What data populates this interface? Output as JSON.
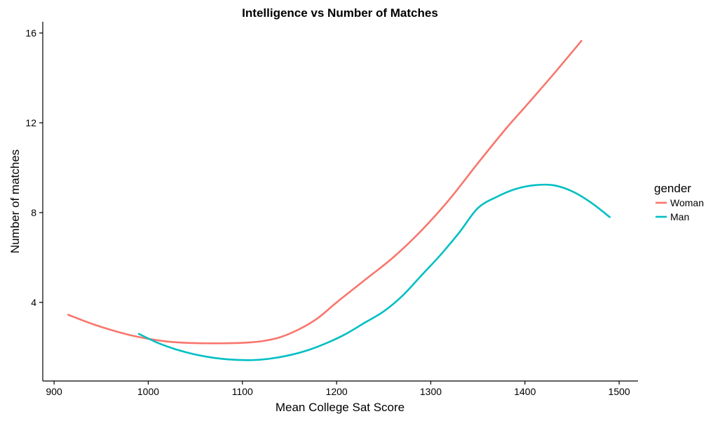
{
  "chart_data": {
    "type": "line",
    "title": "Intelligence vs Number of Matches",
    "xlabel": "Mean College Sat Score",
    "ylabel": "Number of matches",
    "xlim": [
      888,
      1520
    ],
    "ylim": [
      0.5,
      16.5
    ],
    "xticks": [
      900,
      1000,
      1100,
      1200,
      1300,
      1400,
      1500
    ],
    "yticks": [
      4,
      8,
      12,
      16
    ],
    "grid": false,
    "legend": {
      "title": "gender",
      "placement": "right"
    },
    "series": [
      {
        "name": "Woman",
        "color": "#F8766D",
        "points": [
          [
            915,
            3.45
          ],
          [
            940,
            3.05
          ],
          [
            960,
            2.78
          ],
          [
            980,
            2.55
          ],
          [
            1000,
            2.38
          ],
          [
            1020,
            2.26
          ],
          [
            1040,
            2.2
          ],
          [
            1060,
            2.18
          ],
          [
            1080,
            2.18
          ],
          [
            1100,
            2.2
          ],
          [
            1120,
            2.27
          ],
          [
            1140,
            2.45
          ],
          [
            1160,
            2.8
          ],
          [
            1180,
            3.3
          ],
          [
            1200,
            4.0
          ],
          [
            1230,
            5.0
          ],
          [
            1260,
            6.0
          ],
          [
            1290,
            7.2
          ],
          [
            1320,
            8.6
          ],
          [
            1350,
            10.2
          ],
          [
            1380,
            11.75
          ],
          [
            1400,
            12.7
          ],
          [
            1430,
            14.15
          ],
          [
            1460,
            15.65
          ]
        ]
      },
      {
        "name": "Man",
        "color": "#00BFC4",
        "points": [
          [
            990,
            2.6
          ],
          [
            1010,
            2.2
          ],
          [
            1030,
            1.9
          ],
          [
            1050,
            1.68
          ],
          [
            1070,
            1.53
          ],
          [
            1090,
            1.45
          ],
          [
            1110,
            1.43
          ],
          [
            1130,
            1.5
          ],
          [
            1150,
            1.65
          ],
          [
            1170,
            1.88
          ],
          [
            1190,
            2.2
          ],
          [
            1210,
            2.6
          ],
          [
            1230,
            3.1
          ],
          [
            1250,
            3.6
          ],
          [
            1270,
            4.3
          ],
          [
            1290,
            5.2
          ],
          [
            1310,
            6.1
          ],
          [
            1330,
            7.1
          ],
          [
            1350,
            8.2
          ],
          [
            1370,
            8.7
          ],
          [
            1390,
            9.05
          ],
          [
            1410,
            9.22
          ],
          [
            1430,
            9.22
          ],
          [
            1450,
            8.95
          ],
          [
            1470,
            8.45
          ],
          [
            1490,
            7.8
          ]
        ]
      }
    ]
  }
}
